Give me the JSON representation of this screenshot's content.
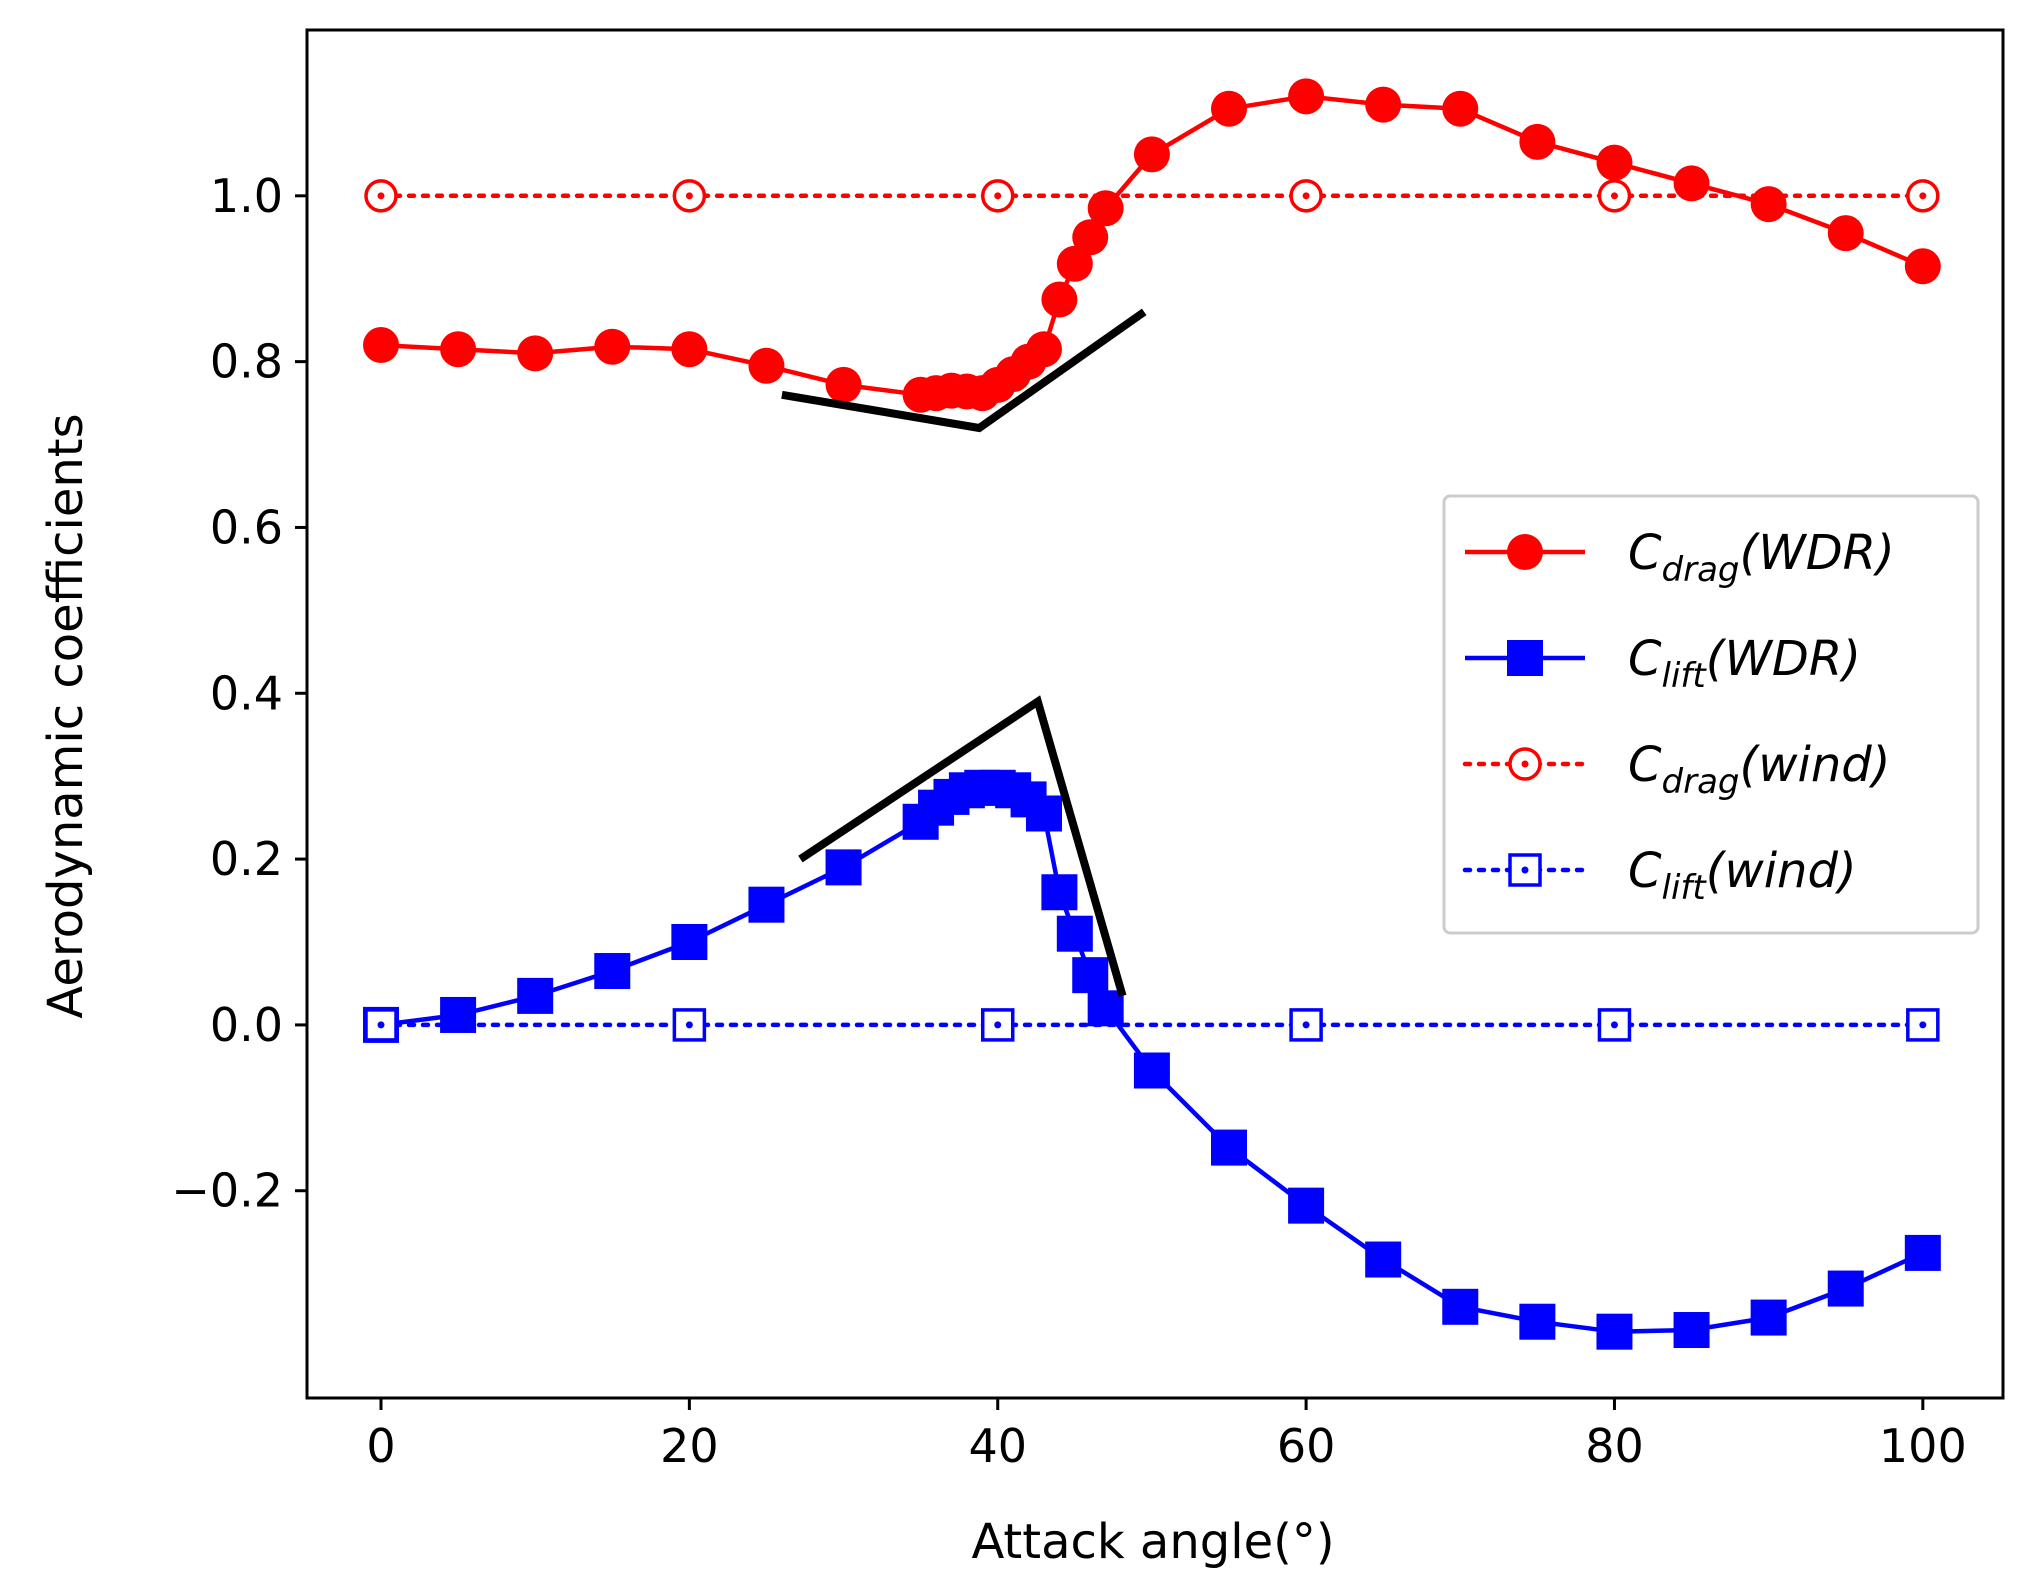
{
  "chart_data": {
    "type": "line",
    "title": "",
    "xlabel": "Attack angle(°)",
    "ylabel": "Aerodynamic coefficients",
    "xlim": [
      -4.8,
      105.2
    ],
    "ylim": [
      -0.45,
      1.2
    ],
    "xticks": [
      0,
      20,
      40,
      60,
      80,
      100
    ],
    "xtick_labels": [
      "0",
      "20",
      "40",
      "60",
      "80",
      "100"
    ],
    "yticks": [
      -0.2,
      0.0,
      0.2,
      0.4,
      0.6,
      0.8,
      1.0
    ],
    "ytick_labels": [
      "−0.2",
      "0.0",
      "0.2",
      "0.4",
      "0.6",
      "0.8",
      "1.0"
    ],
    "grid": false,
    "legend_position": "center-right",
    "series": [
      {
        "name": "C_drag(WDR)",
        "label_main": "C",
        "label_sub": "drag",
        "label_rest": "(WDR)",
        "color": "#ff0000",
        "linestyle": "solid",
        "marker": "circle-filled",
        "x": [
          0,
          5,
          10,
          15,
          20,
          25,
          30,
          35,
          36,
          37,
          38,
          39,
          40,
          41,
          42,
          43,
          44,
          45,
          46,
          47,
          50,
          55,
          60,
          65,
          70,
          75,
          80,
          85,
          90,
          95,
          100
        ],
        "y": [
          0.82,
          0.815,
          0.81,
          0.818,
          0.815,
          0.795,
          0.772,
          0.76,
          0.762,
          0.765,
          0.764,
          0.762,
          0.772,
          0.785,
          0.8,
          0.815,
          0.875,
          0.918,
          0.95,
          0.985,
          1.05,
          1.105,
          1.12,
          1.11,
          1.105,
          1.065,
          1.04,
          1.015,
          0.99,
          0.955,
          0.915
        ]
      },
      {
        "name": "C_lift(WDR)",
        "label_main": "C",
        "label_sub": "lift",
        "label_rest": "(WDR)",
        "color": "#0000ff",
        "linestyle": "solid",
        "marker": "square-filled",
        "x": [
          0,
          5,
          10,
          15,
          20,
          25,
          30,
          35,
          36,
          37,
          38,
          39,
          40,
          41,
          42,
          43,
          44,
          45,
          46,
          47,
          50,
          55,
          60,
          65,
          70,
          75,
          80,
          85,
          90,
          95,
          100
        ],
        "y": [
          0.0,
          0.012,
          0.035,
          0.065,
          0.1,
          0.145,
          0.19,
          0.245,
          0.262,
          0.275,
          0.283,
          0.286,
          0.286,
          0.283,
          0.272,
          0.255,
          0.16,
          0.11,
          0.06,
          0.02,
          -0.055,
          -0.148,
          -0.218,
          -0.283,
          -0.34,
          -0.358,
          -0.37,
          -0.368,
          -0.353,
          -0.318,
          -0.275
        ]
      },
      {
        "name": "C_drag(wind)",
        "label_main": "C",
        "label_sub": "drag",
        "label_rest": "(wind)",
        "color": "#ff0000",
        "linestyle": "dotted",
        "marker": "circle-open-dot",
        "x": [
          0,
          20,
          40,
          60,
          80,
          100
        ],
        "y": [
          1.0,
          1.0,
          1.0,
          1.0,
          1.0,
          1.0
        ]
      },
      {
        "name": "C_lift(wind)",
        "label_main": "C",
        "label_sub": "lift",
        "label_rest": "(wind)",
        "color": "#0000ff",
        "linestyle": "dotted",
        "marker": "square-open-dot",
        "x": [
          0,
          20,
          40,
          60,
          80,
          100
        ],
        "y": [
          0.0,
          0.0,
          0.0,
          0.0,
          0.0,
          0.0
        ]
      }
    ],
    "annotations": [
      {
        "name": "drag-trend-lines",
        "color": "#000000",
        "x": [
          26,
          38.8,
          49.5
        ],
        "y": [
          0.76,
          0.72,
          0.86
        ]
      },
      {
        "name": "lift-trend-lines",
        "color": "#000000",
        "x": [
          27.2,
          42.6,
          48.1
        ],
        "y": [
          0.2,
          0.39,
          0.035
        ]
      }
    ]
  }
}
